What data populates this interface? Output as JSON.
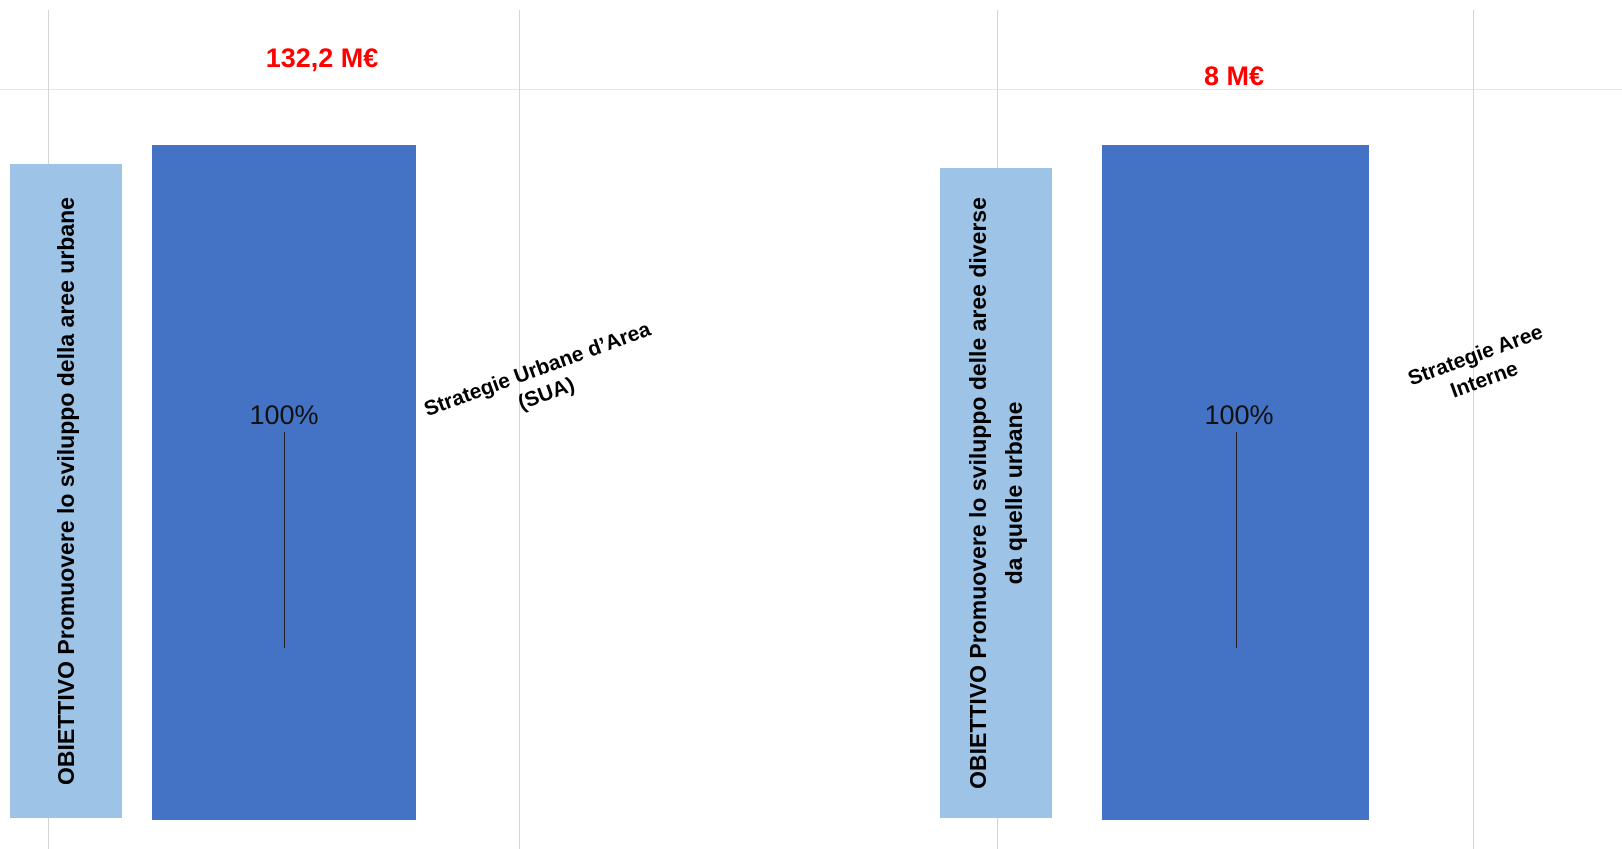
{
  "chart_data": [
    {
      "type": "bar",
      "total_label": "132,2 M€",
      "objective": "OBIETTIVO Promuovere lo sviluppo della aree urbane",
      "categories": [
        "Strategie Urbane d’Area (SUA)"
      ],
      "values": [
        100
      ],
      "value_labels": [
        "100%"
      ],
      "ylim": [
        0,
        100
      ]
    },
    {
      "type": "bar",
      "total_label": "8 M€",
      "objective": "OBIETTIVO Promuovere lo sviluppo delle aree diverse da quelle urbane",
      "categories": [
        "Strategie Aree Interne"
      ],
      "values": [
        100
      ],
      "value_labels": [
        "100%"
      ],
      "ylim": [
        0,
        100
      ]
    }
  ],
  "colors": {
    "total_label": "#ff0000",
    "objective_box": "#9dc3e6",
    "bar": "#4472c4"
  }
}
